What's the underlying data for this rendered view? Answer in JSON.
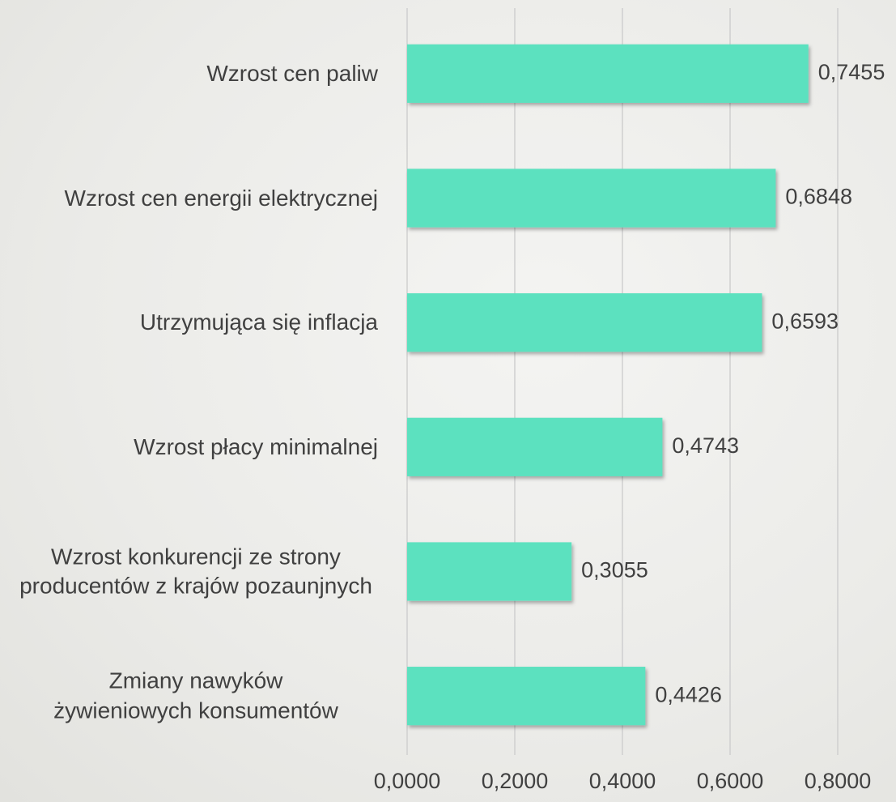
{
  "chart_data": {
    "type": "hbar",
    "categories": [
      "Wzrost cen paliw",
      "Wzrost cen energii elektrycznej",
      "Utrzymująca się inflacja",
      "Wzrost płacy minimalnej",
      "Wzrost konkurencji ze strony producentów z krajów pozaunjnych",
      "Zmiany nawyków żywieniowych konsumentów"
    ],
    "values": [
      0.7455,
      0.6848,
      0.6593,
      0.4743,
      0.3055,
      0.4426
    ],
    "value_labels": [
      "0,7455",
      "0,6848",
      "0,6593",
      "0,4743",
      "0,3055",
      "0,4426"
    ],
    "color": "#5ce1bf",
    "xlim": [
      0,
      0.8
    ],
    "xticks": [
      {
        "value": 0,
        "label": "0,0000"
      },
      {
        "value": 0.2,
        "label": "0,2000"
      },
      {
        "value": 0.4,
        "label": "0,4000"
      },
      {
        "value": 0.6,
        "label": "0,6000"
      },
      {
        "value": 0.8,
        "label": "0,8000"
      }
    ],
    "grid": true
  }
}
